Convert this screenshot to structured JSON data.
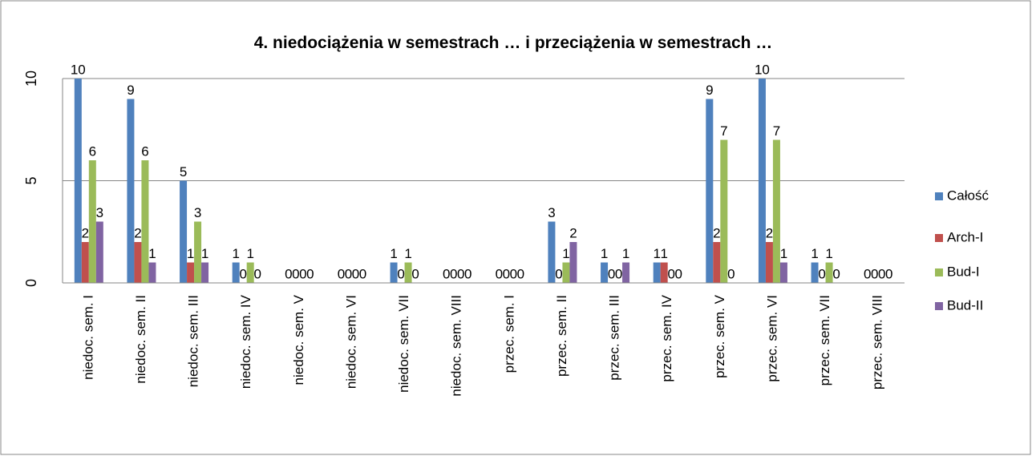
{
  "chart_data": {
    "type": "bar",
    "title": "4. niedociążenia w semestrach … i przeciążenia w semestrach …",
    "categories": [
      "niedoc. sem. I",
      "niedoc. sem. II",
      "niedoc. sem.  III",
      "niedoc. sem.  IV",
      "niedoc. sem.  V",
      "niedoc. sem. VI",
      "niedoc. sem. VII",
      "niedoc. sem. VIII",
      "przec. sem. I",
      "przec. sem. II",
      "przec. sem.  III",
      "przec. sem.  IV",
      "przec. sem.  V",
      "przec. sem. VI",
      "przec. sem. VII",
      "przec. sem. VIII"
    ],
    "series": [
      {
        "name": "Całość",
        "color": "#4f81bd",
        "values": [
          10,
          9,
          5,
          1,
          0,
          0,
          1,
          0,
          0,
          3,
          1,
          1,
          9,
          10,
          1,
          0
        ]
      },
      {
        "name": "Arch-I",
        "color": "#c0504d",
        "values": [
          2,
          2,
          1,
          0,
          0,
          0,
          0,
          0,
          0,
          0,
          0,
          1,
          2,
          2,
          0,
          0
        ]
      },
      {
        "name": "Bud-I",
        "color": "#9bbb59",
        "values": [
          6,
          6,
          3,
          1,
          0,
          0,
          1,
          0,
          0,
          1,
          0,
          0,
          7,
          7,
          1,
          0
        ]
      },
      {
        "name": "Bud-II",
        "color": "#8064a2",
        "values": [
          3,
          1,
          1,
          0,
          0,
          0,
          0,
          0,
          0,
          2,
          1,
          0,
          0,
          1,
          0,
          0
        ]
      }
    ],
    "ylim": [
      0,
      10
    ],
    "yticks": [
      0,
      5,
      10
    ],
    "grid": true,
    "legend": "right"
  }
}
